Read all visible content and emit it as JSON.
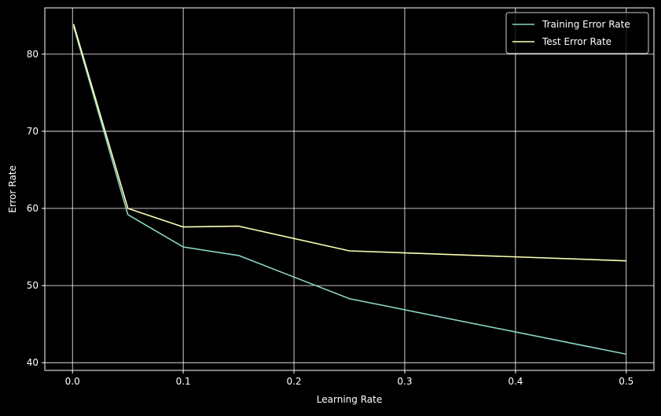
{
  "chart_data": {
    "type": "line",
    "title": "",
    "xlabel": "Learning Rate",
    "ylabel": "Error Rate",
    "xlim": [
      -0.025,
      0.525
    ],
    "ylim": [
      39.0,
      86.0
    ],
    "x_ticks": [
      0.0,
      0.1,
      0.2,
      0.3,
      0.4,
      0.5
    ],
    "x_tick_labels": [
      "0.0",
      "0.1",
      "0.2",
      "0.3",
      "0.4",
      "0.5"
    ],
    "y_ticks": [
      40,
      50,
      60,
      70,
      80
    ],
    "y_tick_labels": [
      "40",
      "50",
      "60",
      "70",
      "80"
    ],
    "grid": true,
    "legend_position": "top-right",
    "x": [
      0.001,
      0.05,
      0.1,
      0.15,
      0.25,
      0.5
    ],
    "series": [
      {
        "name": "Training Error Rate",
        "color": "#8dd3c7",
        "values": [
          83.6,
          59.2,
          55.0,
          53.9,
          48.3,
          41.1
        ]
      },
      {
        "name": "Test Error Rate",
        "color": "#feffb3",
        "values": [
          83.9,
          60.0,
          57.6,
          57.7,
          54.5,
          53.2
        ]
      }
    ],
    "colors": {
      "background": "#000000",
      "axes": "#ffffff",
      "grid": "#ffffff",
      "text": "#ffffff"
    }
  }
}
